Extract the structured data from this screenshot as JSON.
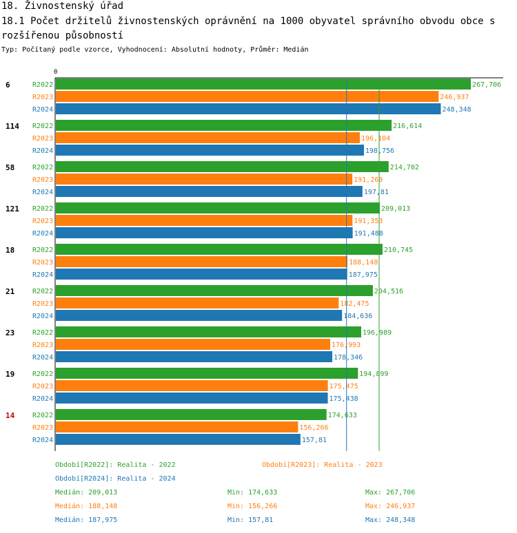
{
  "header": {
    "section_title": "18. Živnostenský úřad",
    "chart_title": "18.1 Počet držitelů živnostenských oprávnění na 1000 obyvatel správního obvodu obce s rozšířenou působností",
    "subtitle": "Typ: Počítaný podle vzorce, Vyhodnocení: Absolutní hodnoty, Průměr: Medián"
  },
  "colors": {
    "R2022": "#2ca02c",
    "R2023": "#ff7f0e",
    "R2024": "#1f77b4",
    "highlight": "#cc0000",
    "axis": "#000000"
  },
  "chart_data": {
    "type": "bar",
    "orientation": "horizontal",
    "x_zero_label": "0",
    "xlim": [
      0,
      267.706
    ],
    "categories": [
      "6",
      "114",
      "58",
      "121",
      "18",
      "21",
      "23",
      "19",
      "14"
    ],
    "highlight_category": "14",
    "series": [
      {
        "name": "R2022",
        "values": [
          267.706,
          216.614,
          214.702,
          209.013,
          210.745,
          204.516,
          196.989,
          194.899,
          174.633
        ],
        "labels": [
          "267,706",
          "216,614",
          "214,702",
          "209,013",
          "210,745",
          "204,516",
          "196,989",
          "194,899",
          "174,633"
        ]
      },
      {
        "name": "R2023",
        "values": [
          246.937,
          196.104,
          191.269,
          191.353,
          188.148,
          182.475,
          176.993,
          175.475,
          156.266
        ],
        "labels": [
          "246,937",
          "196,104",
          "191,269",
          "191,353",
          "188,148",
          "182,475",
          "176,993",
          "175,475",
          "156,266"
        ]
      },
      {
        "name": "R2024",
        "values": [
          248.348,
          198.756,
          197.81,
          191.488,
          187.975,
          184.636,
          178.346,
          175.438,
          157.81
        ],
        "labels": [
          "248,348",
          "198,756",
          "197,81",
          "191,488",
          "187,975",
          "184,636",
          "178,346",
          "175,438",
          "157,81"
        ]
      }
    ],
    "median_lines": [
      {
        "series": "R2022",
        "value": 209.013
      },
      {
        "series": "R2024",
        "value": 187.975
      }
    ]
  },
  "legend": {
    "periods": [
      {
        "series": "R2022",
        "text": "Období[R2022]: Realita - 2022"
      },
      {
        "series": "R2023",
        "text": "Období[R2023]: Realita - 2023"
      },
      {
        "series": "R2024",
        "text": "Období[R2024]: Realita - 2024"
      }
    ],
    "stats": [
      {
        "series": "R2022",
        "median": "Medián: 209,013",
        "min": "Min: 174,633",
        "max": "Max: 267,706"
      },
      {
        "series": "R2023",
        "median": "Medián: 188,148",
        "min": "Min: 156,266",
        "max": "Max: 246,937"
      },
      {
        "series": "R2024",
        "median": "Medián: 187,975",
        "min": "Min: 157,81",
        "max": "Max: 248,348"
      }
    ]
  }
}
